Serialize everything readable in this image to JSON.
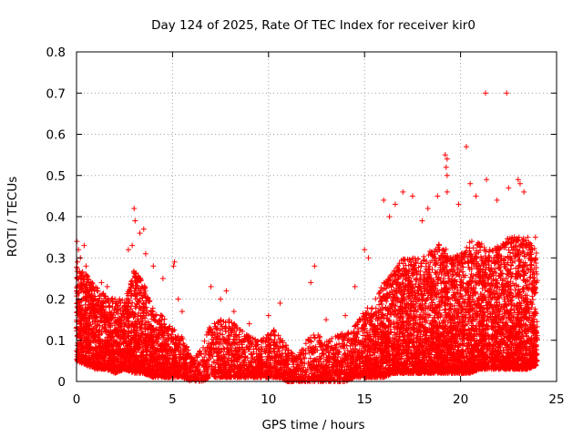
{
  "chart_data": {
    "type": "scatter",
    "title": "Day 124 of 2025, Rate Of TEC Index for receiver kir0",
    "xlabel": "GPS time / hours",
    "ylabel": "ROTI / TECUs",
    "xlim": [
      0,
      25
    ],
    "ylim": [
      0,
      0.8
    ],
    "xticks": [
      0,
      5,
      10,
      15,
      20,
      25
    ],
    "xtick_labels": [
      "0",
      "5",
      "10",
      "15",
      "20",
      "25"
    ],
    "yticks": [
      0,
      0.1,
      0.2,
      0.3,
      0.4,
      0.5,
      0.6,
      0.7,
      0.8
    ],
    "ytick_labels": [
      "0",
      "0.1",
      "0.2",
      "0.3",
      "0.4",
      "0.5",
      "0.6",
      "0.7",
      "0.8"
    ],
    "grid": true,
    "marker": "+",
    "series_color": "#ff0000",
    "series": [
      {
        "name": "ROTI",
        "points": [
          [
            0.02,
            0.34
          ],
          [
            0.05,
            0.29
          ],
          [
            0.1,
            0.32
          ],
          [
            0.2,
            0.3
          ],
          [
            0.4,
            0.33
          ],
          [
            0.5,
            0.28
          ],
          [
            1.3,
            0.24
          ],
          [
            1.6,
            0.23
          ],
          [
            2.0,
            0.2
          ],
          [
            2.5,
            0.19
          ],
          [
            2.7,
            0.32
          ],
          [
            2.9,
            0.33
          ],
          [
            3.0,
            0.42
          ],
          [
            3.05,
            0.39
          ],
          [
            3.3,
            0.36
          ],
          [
            3.5,
            0.37
          ],
          [
            3.6,
            0.31
          ],
          [
            4.0,
            0.28
          ],
          [
            4.5,
            0.25
          ],
          [
            5.1,
            0.29
          ],
          [
            5.05,
            0.28
          ],
          [
            5.3,
            0.2
          ],
          [
            5.5,
            0.17
          ],
          [
            7.0,
            0.23
          ],
          [
            7.5,
            0.2
          ],
          [
            7.8,
            0.22
          ],
          [
            8.2,
            0.17
          ],
          [
            9.0,
            0.14
          ],
          [
            10.0,
            0.16
          ],
          [
            10.6,
            0.19
          ],
          [
            12.4,
            0.28
          ],
          [
            12.2,
            0.24
          ],
          [
            13.0,
            0.15
          ],
          [
            14.0,
            0.16
          ],
          [
            14.5,
            0.23
          ],
          [
            15.0,
            0.32
          ],
          [
            15.2,
            0.3
          ],
          [
            16.0,
            0.44
          ],
          [
            16.3,
            0.4
          ],
          [
            16.6,
            0.43
          ],
          [
            17.0,
            0.46
          ],
          [
            17.5,
            0.45
          ],
          [
            18.0,
            0.39
          ],
          [
            18.3,
            0.42
          ],
          [
            18.8,
            0.45
          ],
          [
            19.2,
            0.55
          ],
          [
            19.3,
            0.54
          ],
          [
            19.25,
            0.52
          ],
          [
            19.3,
            0.5
          ],
          [
            19.3,
            0.46
          ],
          [
            19.9,
            0.43
          ],
          [
            20.3,
            0.57
          ],
          [
            20.5,
            0.48
          ],
          [
            20.8,
            0.45
          ],
          [
            21.3,
            0.7
          ],
          [
            21.35,
            0.49
          ],
          [
            21.9,
            0.44
          ],
          [
            22.4,
            0.7
          ],
          [
            22.5,
            0.47
          ],
          [
            23.0,
            0.49
          ],
          [
            23.1,
            0.48
          ],
          [
            23.3,
            0.46
          ],
          [
            23.5,
            0.35
          ],
          [
            23.7,
            0.33
          ],
          [
            23.9,
            0.35
          ]
        ],
        "envelope": {
          "x": [
            0,
            0.5,
            1,
            1.5,
            2,
            2.5,
            3,
            3.5,
            4,
            4.5,
            5,
            5.5,
            6,
            6.5,
            7,
            7.5,
            8,
            8.5,
            9,
            9.5,
            10,
            10.5,
            11,
            11.5,
            12,
            12.5,
            13,
            13.5,
            14,
            14.5,
            15,
            15.5,
            16,
            16.5,
            17,
            17.5,
            18,
            18.5,
            19,
            19.5,
            20,
            20.5,
            21,
            21.5,
            22,
            22.5,
            23,
            23.5,
            24
          ],
          "low": [
            0.05,
            0.04,
            0.03,
            0.03,
            0.02,
            0.03,
            0.02,
            0.02,
            0.01,
            0.01,
            0.01,
            0.01,
            0.0,
            0.0,
            0.01,
            0.01,
            0.01,
            0.01,
            0.01,
            0.01,
            0.01,
            0.01,
            0.0,
            0.0,
            0.0,
            0.0,
            0.0,
            0.0,
            0.0,
            0.01,
            0.01,
            0.01,
            0.01,
            0.02,
            0.02,
            0.02,
            0.02,
            0.02,
            0.02,
            0.02,
            0.02,
            0.02,
            0.03,
            0.03,
            0.03,
            0.03,
            0.03,
            0.03,
            0.04
          ],
          "high": [
            0.28,
            0.26,
            0.23,
            0.21,
            0.2,
            0.2,
            0.27,
            0.24,
            0.18,
            0.16,
            0.13,
            0.11,
            0.06,
            0.08,
            0.14,
            0.15,
            0.15,
            0.13,
            0.11,
            0.1,
            0.12,
            0.13,
            0.08,
            0.06,
            0.1,
            0.12,
            0.1,
            0.11,
            0.12,
            0.14,
            0.17,
            0.2,
            0.24,
            0.27,
            0.3,
            0.3,
            0.3,
            0.32,
            0.34,
            0.3,
            0.31,
            0.35,
            0.34,
            0.32,
            0.33,
            0.35,
            0.36,
            0.34,
            0.32
          ],
          "density": [
            30,
            28,
            26,
            24,
            22,
            24,
            28,
            26,
            20,
            18,
            14,
            12,
            8,
            8,
            12,
            14,
            14,
            12,
            12,
            12,
            12,
            12,
            10,
            8,
            10,
            12,
            12,
            12,
            14,
            16,
            20,
            22,
            26,
            28,
            30,
            30,
            30,
            30,
            32,
            30,
            30,
            32,
            32,
            30,
            30,
            32,
            32,
            30,
            20
          ]
        }
      }
    ]
  }
}
